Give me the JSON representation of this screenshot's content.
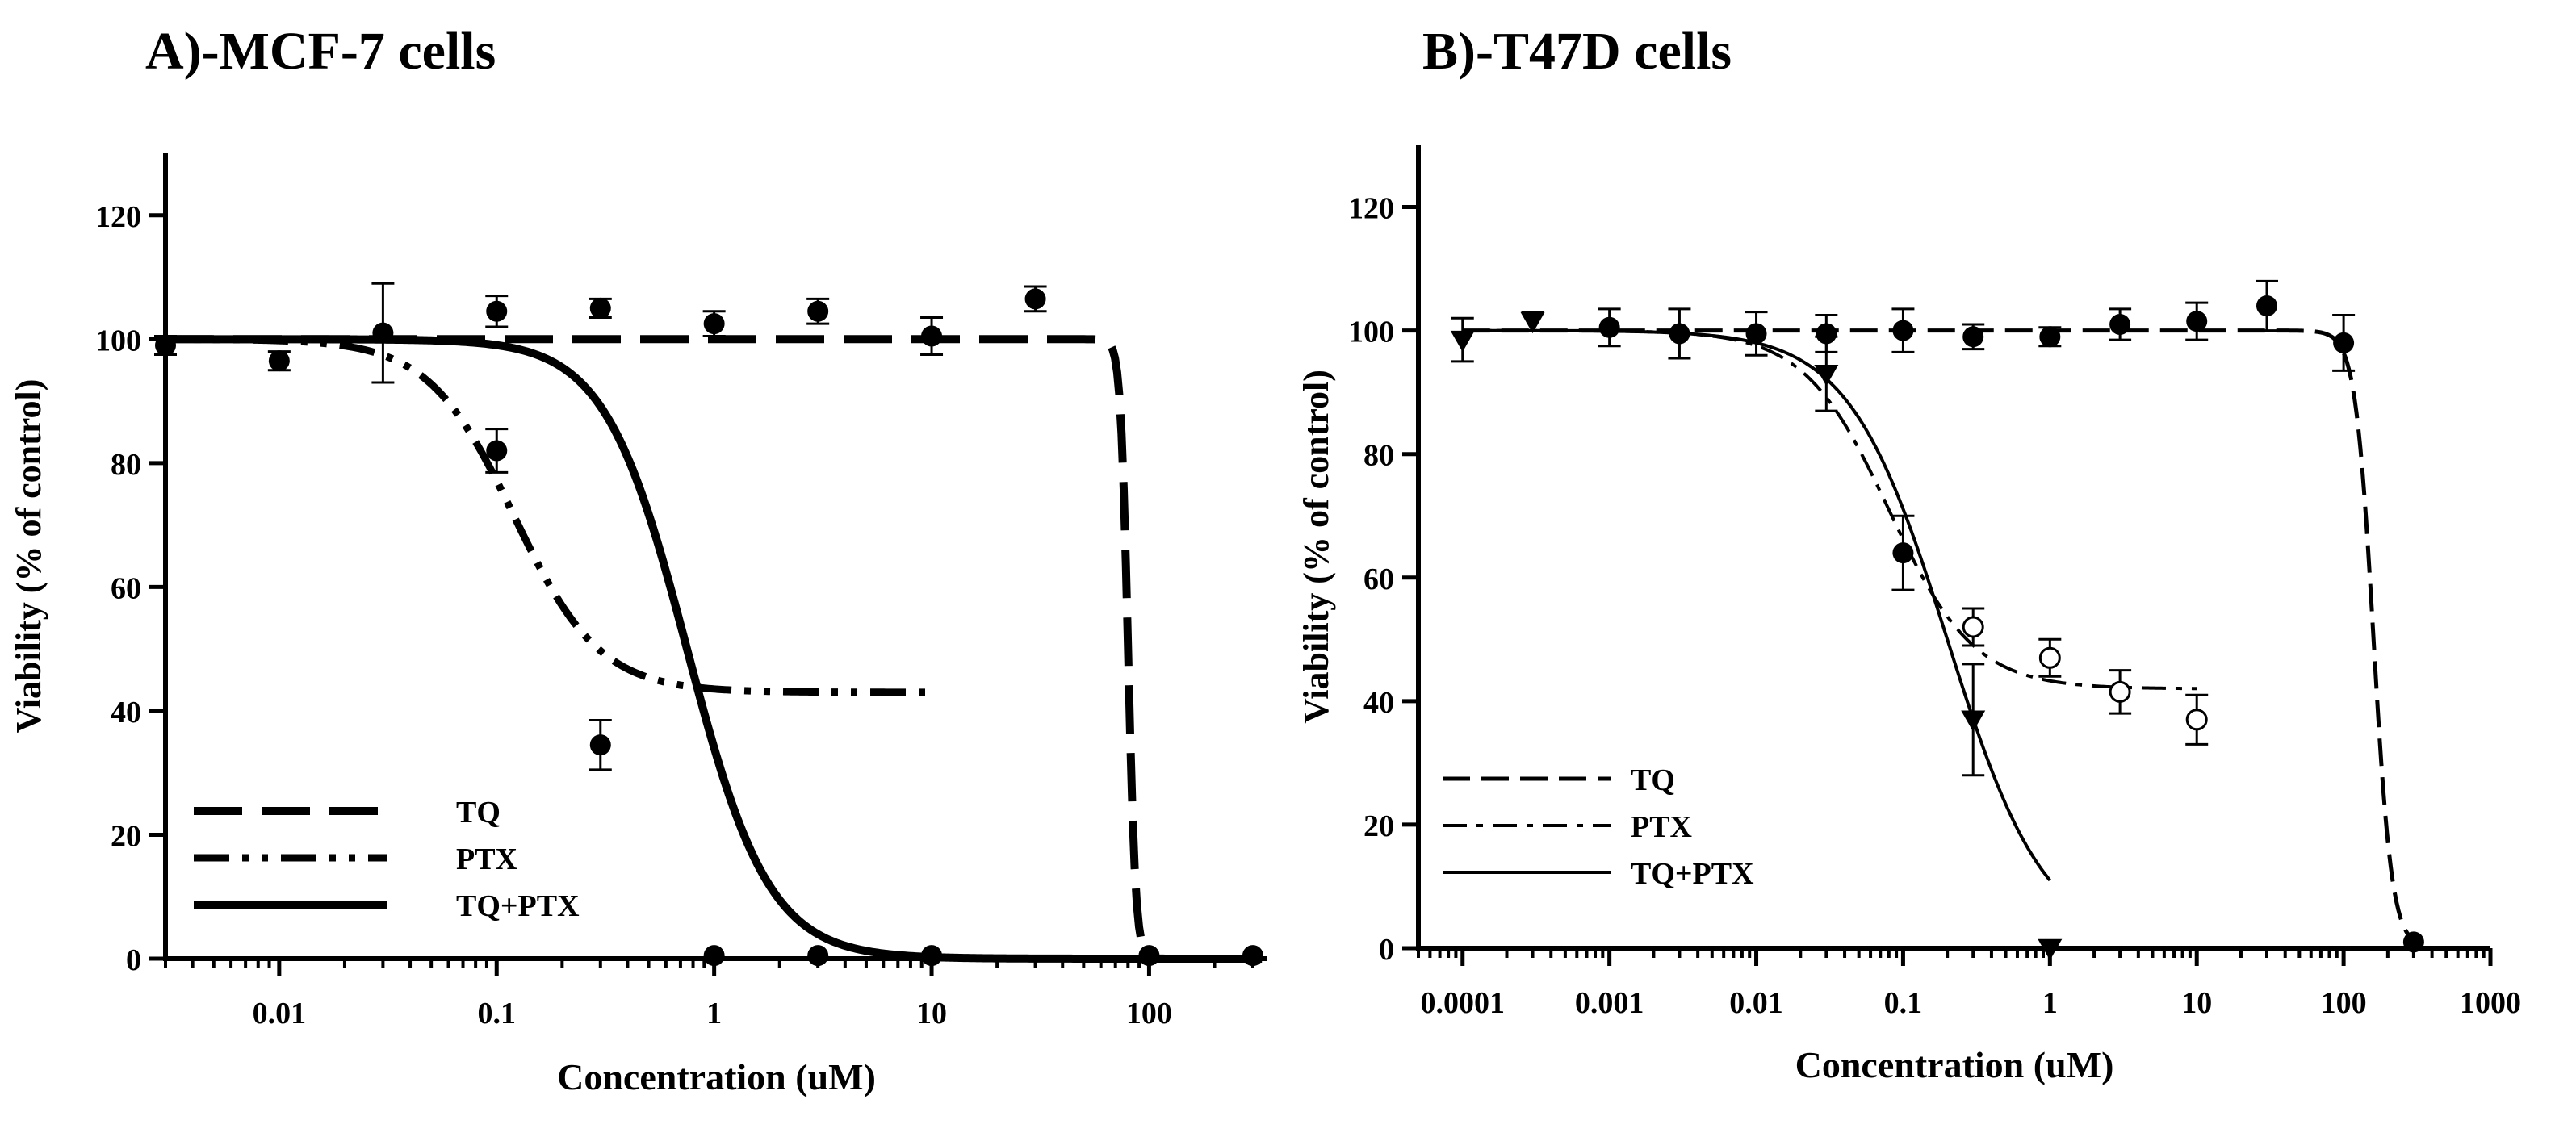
{
  "chart_data": [
    {
      "type": "line",
      "panel_title": "A)-MCF-7  cells",
      "xlabel": "Concentration (uM)",
      "ylabel": "Viability (% of control)",
      "xscale": "log",
      "xlim": [
        0.003,
        350
      ],
      "ylim": [
        0,
        130
      ],
      "xticks": [
        0.01,
        0.1,
        1,
        10,
        100
      ],
      "xtick_labels": [
        "0.01",
        "0.1",
        "1",
        "10",
        "100"
      ],
      "yticks": [
        0,
        20,
        40,
        60,
        80,
        100,
        120
      ],
      "ytick_labels": [
        "0",
        "20",
        "40",
        "60",
        "80",
        "100",
        "120"
      ],
      "legend_position": "bottom-left",
      "series": [
        {
          "name": "TQ",
          "style": "dashed",
          "curve": {
            "top": 100,
            "bottom": 0,
            "ec50": 80,
            "hill": 25
          },
          "x_range": [
            0.003,
            330
          ]
        },
        {
          "name": "PTX",
          "style": "dash-dot-dot",
          "curve": {
            "top": 100,
            "bottom": 43,
            "ec50": 0.12,
            "hill": 2.2
          },
          "x_range": [
            0.003,
            10
          ]
        },
        {
          "name": "TQ+PTX",
          "style": "solid",
          "curve": {
            "top": 100,
            "bottom": 0,
            "ec50": 0.75,
            "hill": 2.3
          },
          "x_range": [
            0.003,
            330
          ]
        }
      ],
      "points": [
        {
          "x": 0.003,
          "y": 99,
          "err": 1.5,
          "marker": "filled-circle"
        },
        {
          "x": 0.01,
          "y": 96.5,
          "err": 1.5,
          "marker": "filled-circle"
        },
        {
          "x": 0.03,
          "y": 101,
          "err": 8,
          "marker": "filled-circle"
        },
        {
          "x": 0.1,
          "y": 104.5,
          "err": 2.5,
          "marker": "filled-circle"
        },
        {
          "x": 0.1,
          "y": 82,
          "err": 3.5,
          "marker": "filled-circle"
        },
        {
          "x": 0.3,
          "y": 105,
          "err": 1.5,
          "marker": "filled-circle"
        },
        {
          "x": 0.3,
          "y": 34.5,
          "err": 4,
          "marker": "filled-circle"
        },
        {
          "x": 1,
          "y": 102.5,
          "err": 2,
          "marker": "filled-circle"
        },
        {
          "x": 1,
          "y": 0.5,
          "err": 0,
          "marker": "filled-circle"
        },
        {
          "x": 3,
          "y": 104.5,
          "err": 2,
          "marker": "filled-circle"
        },
        {
          "x": 3,
          "y": 0.5,
          "err": 0,
          "marker": "filled-circle"
        },
        {
          "x": 10,
          "y": 100.5,
          "err": 3,
          "marker": "filled-circle"
        },
        {
          "x": 10,
          "y": 0.5,
          "err": 0,
          "marker": "filled-circle"
        },
        {
          "x": 30,
          "y": 106.5,
          "err": 2,
          "marker": "filled-circle"
        },
        {
          "x": 100,
          "y": 0.5,
          "err": 0,
          "marker": "filled-circle"
        },
        {
          "x": 300,
          "y": 0.5,
          "err": 0,
          "marker": "filled-circle"
        }
      ]
    },
    {
      "type": "line",
      "panel_title": "B)-T47D cells",
      "xlabel": "Concentration (uM)",
      "ylabel": "Viability (% of control)",
      "xscale": "log",
      "xlim": [
        5e-05,
        1000
      ],
      "ylim": [
        0,
        130
      ],
      "xticks": [
        0.0001,
        0.001,
        0.01,
        0.1,
        1,
        10,
        100,
        1000
      ],
      "xtick_labels": [
        "0.0001",
        "0.001",
        "0.01",
        "0.1",
        "1",
        "10",
        "100",
        "1000"
      ],
      "yticks": [
        0,
        20,
        40,
        60,
        80,
        100,
        120
      ],
      "ytick_labels": [
        "0",
        "20",
        "40",
        "60",
        "80",
        "100",
        "120"
      ],
      "legend_position": "bottom-left",
      "series": [
        {
          "name": "TQ",
          "style": "dashed",
          "curve": {
            "top": 100,
            "bottom": 0,
            "ec50": 160,
            "hill": 7
          },
          "x_range": [
            0.0001,
            300
          ]
        },
        {
          "name": "PTX",
          "style": "dash-dot",
          "curve": {
            "top": 100,
            "bottom": 42,
            "ec50": 0.08,
            "hill": 1.5
          },
          "x_range": [
            0.0001,
            10
          ]
        },
        {
          "name": "TQ+PTX",
          "style": "solid",
          "curve": {
            "top": 100,
            "bottom": 0,
            "ec50": 0.2,
            "hill": 1.3
          },
          "x_range": [
            0.0001,
            1
          ]
        }
      ],
      "points": [
        {
          "x": 0.0001,
          "y": 98.5,
          "err": 3.5,
          "marker": "triangle-down"
        },
        {
          "x": 0.0003,
          "y": 101.5,
          "err": 1.5,
          "marker": "triangle-down"
        },
        {
          "x": 0.001,
          "y": 100.5,
          "err": 3,
          "marker": "filled-circle"
        },
        {
          "x": 0.003,
          "y": 99.5,
          "err": 4,
          "marker": "filled-circle"
        },
        {
          "x": 0.01,
          "y": 99.5,
          "err": 3.5,
          "marker": "filled-circle"
        },
        {
          "x": 0.03,
          "y": 99.5,
          "err": 3,
          "marker": "filled-circle"
        },
        {
          "x": 0.03,
          "y": 93,
          "err": 6,
          "marker": "triangle-down"
        },
        {
          "x": 0.1,
          "y": 100,
          "err": 3.5,
          "marker": "filled-circle"
        },
        {
          "x": 0.1,
          "y": 64,
          "err": 6,
          "marker": "filled-circle"
        },
        {
          "x": 0.3,
          "y": 99,
          "err": 2,
          "marker": "filled-circle"
        },
        {
          "x": 0.3,
          "y": 52,
          "err": 3,
          "marker": "open-circle"
        },
        {
          "x": 0.3,
          "y": 37,
          "err": 9,
          "marker": "triangle-down"
        },
        {
          "x": 1,
          "y": 99,
          "err": 1.5,
          "marker": "filled-circle"
        },
        {
          "x": 1,
          "y": 47,
          "err": 3,
          "marker": "open-circle"
        },
        {
          "x": 1,
          "y": 0,
          "err": 0,
          "marker": "triangle-down"
        },
        {
          "x": 3,
          "y": 101,
          "err": 2.5,
          "marker": "filled-circle"
        },
        {
          "x": 3,
          "y": 41.5,
          "err": 3.5,
          "marker": "open-circle"
        },
        {
          "x": 10,
          "y": 101.5,
          "err": 3,
          "marker": "filled-circle"
        },
        {
          "x": 10,
          "y": 37,
          "err": 4,
          "marker": "open-circle"
        },
        {
          "x": 30,
          "y": 104,
          "err": 4,
          "marker": "filled-circle"
        },
        {
          "x": 100,
          "y": 98,
          "err": 4.5,
          "marker": "filled-circle"
        },
        {
          "x": 300,
          "y": 1,
          "err": 0,
          "marker": "filled-circle"
        }
      ]
    }
  ]
}
